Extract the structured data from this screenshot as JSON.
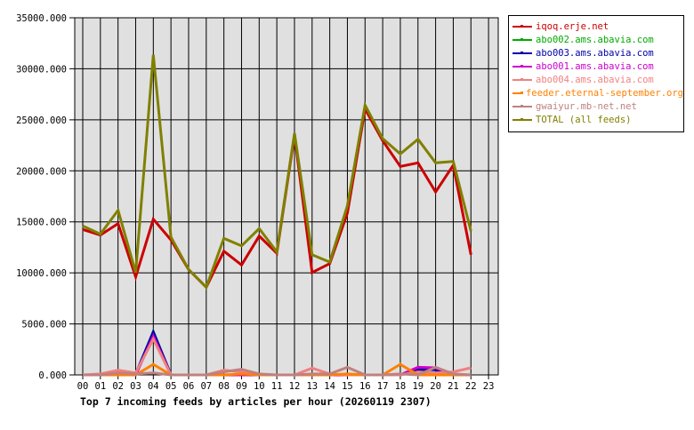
{
  "chart_data": {
    "type": "line",
    "title": "Top 7 incoming feeds by articles per hour (20260119 2307)",
    "xlabel": "",
    "ylabel": "",
    "ylim": [
      0,
      35000
    ],
    "y_ticks": [
      "0.000",
      "5000.000",
      "10000.000",
      "15000.000",
      "20000.000",
      "25000.000",
      "30000.000",
      "35000.000"
    ],
    "categories": [
      "00",
      "01",
      "02",
      "03",
      "04",
      "05",
      "06",
      "07",
      "08",
      "09",
      "10",
      "11",
      "12",
      "13",
      "14",
      "15",
      "16",
      "17",
      "18",
      "19",
      "20",
      "21",
      "22",
      "23"
    ],
    "grid": true,
    "legend_position": "right",
    "series": [
      {
        "name": "iqoq.erje.net",
        "color": "#cc0000",
        "values": [
          14250,
          13700,
          14830,
          9600,
          15260,
          13230,
          10330,
          8590,
          12130,
          10770,
          13610,
          11930,
          23500,
          10040,
          10910,
          15850,
          26060,
          22960,
          20430,
          20780,
          17930,
          20550,
          11780
        ]
      },
      {
        "name": "abo002.ams.abavia.com",
        "color": "#00aa00",
        "values": [
          0,
          0,
          0,
          0,
          4240,
          0,
          0,
          0,
          0,
          0,
          0,
          0,
          0,
          0,
          0,
          0,
          0,
          0,
          0,
          550,
          0,
          0,
          0
        ]
      },
      {
        "name": "abo003.ams.abavia.com",
        "color": "#0000aa",
        "values": [
          0,
          0,
          0,
          100,
          4200,
          0,
          0,
          0,
          0,
          0,
          0,
          0,
          0,
          0,
          0,
          0,
          0,
          0,
          0,
          550,
          500,
          0,
          0
        ]
      },
      {
        "name": "abo001.ams.abavia.com",
        "color": "#cc00cc",
        "values": [
          0,
          0,
          0,
          0,
          3800,
          0,
          0,
          0,
          0,
          0,
          0,
          0,
          0,
          0,
          0,
          0,
          0,
          0,
          0,
          750,
          700,
          0,
          0
        ]
      },
      {
        "name": "abo004.ams.abavia.com",
        "color": "#f08080",
        "values": [
          0,
          100,
          460,
          200,
          3510,
          0,
          0,
          0,
          460,
          300,
          0,
          0,
          0,
          670,
          100,
          0,
          0,
          0,
          0,
          300,
          200,
          300,
          700
        ]
      },
      {
        "name": "feeder.eternal-september.org",
        "color": "#ff8000",
        "values": [
          0,
          0,
          0,
          0,
          1040,
          0,
          0,
          0,
          0,
          100,
          0,
          0,
          0,
          0,
          0,
          100,
          0,
          0,
          1040,
          0,
          0,
          0,
          0
        ]
      },
      {
        "name": "gwaiyur.mb-net.net",
        "color": "#c08080",
        "values": [
          0,
          0,
          200,
          100,
          200,
          0,
          0,
          0,
          300,
          560,
          100,
          0,
          0,
          100,
          100,
          750,
          0,
          0,
          100,
          0,
          750,
          100,
          0
        ]
      },
      {
        "name": "TOTAL (all feeds)",
        "color": "#808000",
        "values": [
          14600,
          13800,
          16130,
          10040,
          31370,
          13520,
          10330,
          8590,
          13380,
          12650,
          14340,
          12070,
          23680,
          11780,
          11060,
          16570,
          26440,
          23160,
          21650,
          23100,
          20780,
          20920,
          14100
        ]
      }
    ]
  }
}
